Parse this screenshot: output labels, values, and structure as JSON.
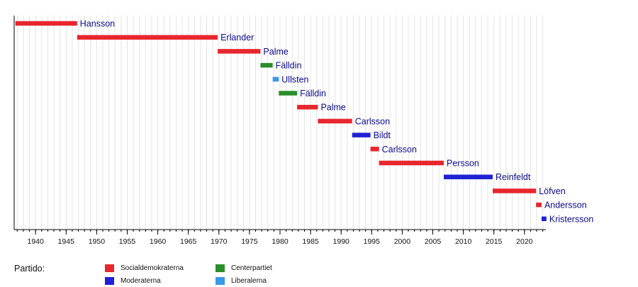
{
  "chart_data": {
    "type": "timeline",
    "xlim": [
      1936.5,
      2023.5
    ],
    "x_ticks": [
      1940,
      1945,
      1950,
      1955,
      1960,
      1965,
      1970,
      1975,
      1980,
      1985,
      1990,
      1995,
      2000,
      2005,
      2010,
      2015,
      2020
    ],
    "grid": "vertical lines every year, labeled every 5 years",
    "bars": [
      {
        "label": "Hansson",
        "start": 1936.7,
        "end": 1946.8,
        "party": "Socialdemokraterna"
      },
      {
        "label": "Erlander",
        "start": 1946.8,
        "end": 1969.8,
        "party": "Socialdemokraterna"
      },
      {
        "label": "Palme",
        "start": 1969.8,
        "end": 1976.8,
        "party": "Socialdemokraterna"
      },
      {
        "label": "Fälldin",
        "start": 1976.8,
        "end": 1978.8,
        "party": "Centerpartiet"
      },
      {
        "label": "Ullsten",
        "start": 1978.8,
        "end": 1979.8,
        "party": "Liberalerna"
      },
      {
        "label": "Fälldin",
        "start": 1979.8,
        "end": 1982.8,
        "party": "Centerpartiet"
      },
      {
        "label": "Palme",
        "start": 1982.8,
        "end": 1986.2,
        "party": "Socialdemokraterna"
      },
      {
        "label": "Carlsson",
        "start": 1986.2,
        "end": 1991.8,
        "party": "Socialdemokraterna"
      },
      {
        "label": "Bildt",
        "start": 1991.8,
        "end": 1994.8,
        "party": "Moderaterna"
      },
      {
        "label": "Carlsson",
        "start": 1994.8,
        "end": 1996.2,
        "party": "Socialdemokraterna"
      },
      {
        "label": "Persson",
        "start": 1996.2,
        "end": 2006.8,
        "party": "Socialdemokraterna"
      },
      {
        "label": "Reinfeldt",
        "start": 2006.8,
        "end": 2014.8,
        "party": "Moderaterna"
      },
      {
        "label": "Löfven",
        "start": 2014.8,
        "end": 2021.9,
        "party": "Socialdemokraterna"
      },
      {
        "label": "Andersson",
        "start": 2021.9,
        "end": 2022.8,
        "party": "Socialdemokraterna"
      },
      {
        "label": "Kristersson",
        "start": 2022.8,
        "end": 2023.6,
        "party": "Moderaterna"
      }
    ],
    "legend": {
      "title": "Partido:",
      "placement": "bottom",
      "items": [
        {
          "name": "Socialdemokraterna",
          "color": "#e8262e"
        },
        {
          "name": "Moderaterna",
          "color": "#2020d6"
        },
        {
          "name": "Centerpartiet",
          "color": "#2b8f2b"
        },
        {
          "name": "Liberalerna",
          "color": "#3a98e8"
        }
      ]
    },
    "colors": {
      "Socialdemokraterna": "#e8262e",
      "Moderaterna": "#2020d6",
      "Centerpartiet": "#2b8f2b",
      "Liberalerna": "#3a98e8",
      "label": "#0b0b8c",
      "grid": "#e4e4e4",
      "axis": "#000000"
    }
  }
}
